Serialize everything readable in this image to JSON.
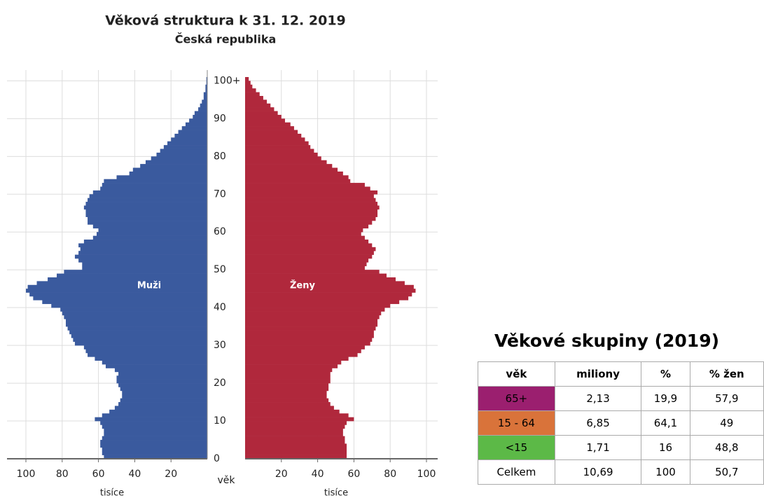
{
  "chart_data": {
    "type": "pyramid",
    "title": "Věková struktura k 31. 12. 2019",
    "subtitle": "Česká republika",
    "xlabel": "tisíce",
    "ylabel": "věk",
    "ages": [
      0,
      1,
      2,
      3,
      4,
      5,
      6,
      7,
      8,
      9,
      10,
      11,
      12,
      13,
      14,
      15,
      16,
      17,
      18,
      19,
      20,
      21,
      22,
      23,
      24,
      25,
      26,
      27,
      28,
      29,
      30,
      31,
      32,
      33,
      34,
      35,
      36,
      37,
      38,
      39,
      40,
      41,
      42,
      43,
      44,
      45,
      46,
      47,
      48,
      49,
      50,
      51,
      52,
      53,
      54,
      55,
      56,
      57,
      58,
      59,
      60,
      61,
      62,
      63,
      64,
      65,
      66,
      67,
      68,
      69,
      70,
      71,
      72,
      73,
      74,
      75,
      76,
      77,
      78,
      79,
      80,
      81,
      82,
      83,
      84,
      85,
      86,
      87,
      88,
      89,
      90,
      91,
      92,
      93,
      94,
      95,
      96,
      97,
      98,
      99,
      100
    ],
    "series": [
      {
        "name": "Muži",
        "color": "#3a5a9e",
        "side": "left",
        "values": [
          57,
          58,
          58,
          59,
          59,
          58,
          57,
          57,
          58,
          59,
          62,
          58,
          54,
          51,
          49,
          48,
          47,
          47,
          48,
          49,
          50,
          50,
          49,
          51,
          56,
          58,
          62,
          66,
          67,
          68,
          73,
          74,
          75,
          76,
          77,
          78,
          78,
          79,
          80,
          81,
          86,
          91,
          96,
          98,
          100,
          99,
          94,
          88,
          83,
          79,
          69,
          69,
          71,
          73,
          71,
          70,
          71,
          68,
          63,
          61,
          60,
          63,
          66,
          66,
          67,
          67,
          68,
          67,
          66,
          65,
          63,
          59,
          58,
          57,
          50,
          43,
          41,
          37,
          34,
          31,
          28,
          26,
          24,
          22,
          20,
          18,
          16,
          14,
          12,
          10,
          8,
          7,
          5,
          4,
          3,
          2,
          2,
          1,
          1,
          0.5,
          0.5
        ]
      },
      {
        "name": "Ženy",
        "color": "#b0283c",
        "side": "right",
        "values": [
          56,
          56,
          56,
          56,
          55,
          55,
          54,
          54,
          55,
          56,
          60,
          57,
          52,
          49,
          47,
          46,
          45,
          45,
          46,
          46,
          47,
          47,
          47,
          48,
          51,
          53,
          57,
          62,
          64,
          66,
          69,
          70,
          71,
          71,
          72,
          73,
          73,
          74,
          75,
          77,
          80,
          85,
          90,
          92,
          94,
          93,
          88,
          83,
          78,
          74,
          66,
          67,
          68,
          70,
          71,
          72,
          70,
          68,
          66,
          64,
          65,
          68,
          70,
          72,
          73,
          73,
          74,
          73,
          72,
          71,
          73,
          69,
          66,
          58,
          57,
          54,
          51,
          48,
          45,
          42,
          40,
          38,
          36,
          35,
          33,
          31,
          29,
          27,
          25,
          22,
          20,
          18,
          16,
          14,
          12,
          10,
          8,
          6,
          4,
          3,
          2
        ]
      }
    ],
    "xlim": [
      0,
      100
    ],
    "xticks": [
      20,
      40,
      60,
      80,
      100
    ],
    "ylim": [
      0,
      101
    ],
    "yticks": [
      0,
      10,
      20,
      30,
      40,
      50,
      60,
      70,
      80,
      90,
      {
        "value": 100,
        "label": "100+"
      }
    ],
    "grid": true
  },
  "table": {
    "title": "Věkové skupiny (2019)",
    "columns": [
      "věk",
      "miliony",
      "%",
      "% žen"
    ],
    "rows": [
      [
        "65+",
        "2,13",
        "19,9",
        "57,9"
      ],
      [
        "15 - 64",
        "6,85",
        "64,1",
        "49"
      ],
      [
        "<15",
        "1,71",
        "16",
        "48,8"
      ],
      [
        "Celkem",
        "10,69",
        "100",
        "50,7"
      ]
    ],
    "row_colors": [
      "#9b1f6f",
      "#d9733a",
      "#5cb947",
      "#ffffff"
    ]
  }
}
